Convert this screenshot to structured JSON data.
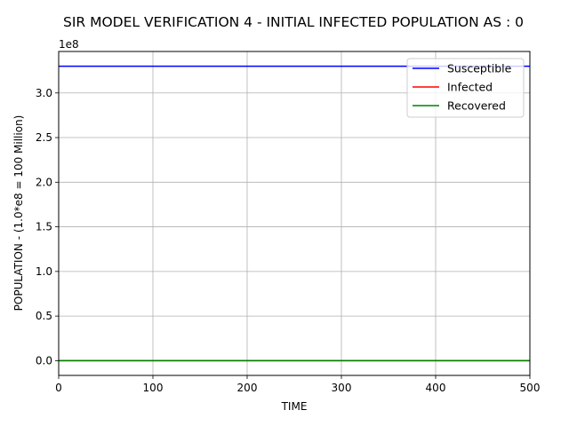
{
  "chart_data": {
    "type": "line",
    "title": "SIR MODEL VERIFICATION 4 - INITIAL INFECTED POPULATION AS : 0",
    "xlabel": "TIME",
    "ylabel": "POPULATION - (1.0*e8 = 100 Million)",
    "y_offset_text": "1e8",
    "xlim": [
      0,
      500
    ],
    "ylim": [
      -0.165,
      3.465
    ],
    "x_ticks": [
      0,
      100,
      200,
      300,
      400,
      500
    ],
    "x_tick_labels": [
      "0",
      "100",
      "200",
      "300",
      "400",
      "500"
    ],
    "y_ticks": [
      0.0,
      0.5,
      1.0,
      1.5,
      2.0,
      2.5,
      3.0
    ],
    "y_tick_labels": [
      "0.0",
      "0.5",
      "1.0",
      "1.5",
      "2.0",
      "2.5",
      "3.0"
    ],
    "grid": true,
    "legend_position": "top-right",
    "x": [
      0,
      500
    ],
    "series": [
      {
        "name": "Susceptible",
        "color": "#0000ff",
        "values": [
          3.3,
          3.3
        ]
      },
      {
        "name": "Infected",
        "color": "#ff0000",
        "values": [
          0.0,
          0.0
        ]
      },
      {
        "name": "Recovered",
        "color": "#008000",
        "values": [
          0.0,
          0.0
        ]
      }
    ]
  }
}
